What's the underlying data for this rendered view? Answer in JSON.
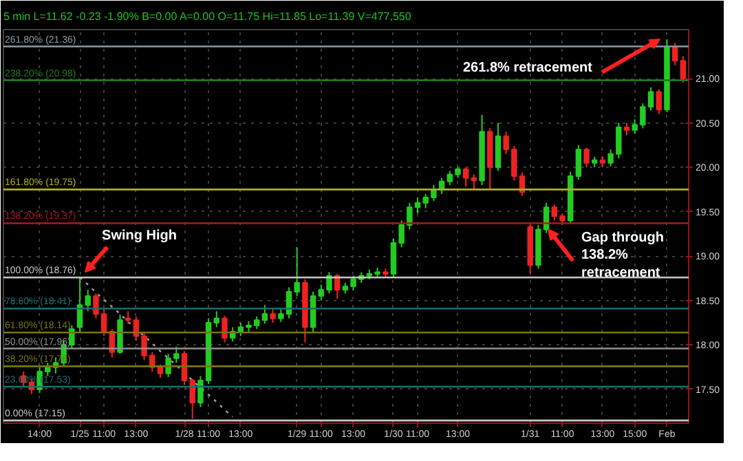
{
  "chart_data": {
    "type": "candlestick",
    "subtitle": "5 min L=11.62 -0.23 -1.90% B=0.00 A=0.00 O=11.75 Hi=11.85 Lo=11.39 V=477,550",
    "ylim": [
      17.12,
      21.55
    ],
    "yticks": [
      {
        "value": 17.5,
        "label": "17.50"
      },
      {
        "value": 18.0,
        "label": "18.00"
      },
      {
        "value": 18.5,
        "label": "18.50"
      },
      {
        "value": 19.0,
        "label": "19.00"
      },
      {
        "value": 19.5,
        "label": "19.50"
      },
      {
        "value": 20.0,
        "label": "20.00"
      },
      {
        "value": 20.5,
        "label": "20.50"
      },
      {
        "value": 21.0,
        "label": "21.00"
      }
    ],
    "grid": true,
    "categories": [
      null,
      null,
      "14:00",
      null,
      null,
      null,
      null,
      "1/25",
      null,
      null,
      "11:00",
      null,
      null,
      null,
      "13:00",
      null,
      null,
      null,
      null,
      null,
      "1/28",
      null,
      null,
      "11:00",
      null,
      null,
      null,
      "13:00",
      null,
      null,
      null,
      null,
      null,
      null,
      "1/29",
      null,
      null,
      "11:00",
      null,
      null,
      null,
      "13:00",
      null,
      null,
      null,
      null,
      "1/30",
      null,
      null,
      "11:00",
      null,
      null,
      null,
      null,
      "13:00",
      null,
      null,
      null,
      null,
      null,
      null,
      null,
      null,
      "1/31",
      null,
      null,
      null,
      "11:00",
      null,
      null,
      null,
      null,
      "13:00",
      null,
      null,
      null,
      "15:00",
      null,
      null,
      null,
      "Feb",
      null,
      null
    ],
    "ohlc": [
      [
        17.65,
        17.7,
        17.53,
        17.58
      ],
      [
        17.58,
        17.62,
        17.45,
        17.5
      ],
      [
        17.5,
        17.75,
        17.46,
        17.7
      ],
      [
        17.7,
        17.8,
        17.65,
        17.75
      ],
      [
        17.75,
        17.86,
        17.68,
        17.8
      ],
      [
        17.8,
        18.05,
        17.76,
        18.0
      ],
      [
        18.0,
        18.22,
        17.96,
        18.18
      ],
      [
        18.2,
        18.76,
        18.15,
        18.45
      ],
      [
        18.45,
        18.62,
        18.38,
        18.55
      ],
      [
        18.55,
        18.58,
        18.3,
        18.35
      ],
      [
        18.35,
        18.4,
        18.1,
        18.15
      ],
      [
        18.15,
        18.18,
        17.86,
        17.92
      ],
      [
        17.92,
        18.34,
        17.9,
        18.28
      ],
      [
        18.3,
        18.38,
        18.24,
        18.28
      ],
      [
        18.28,
        18.32,
        18.05,
        18.1
      ],
      [
        18.1,
        18.14,
        17.83,
        17.88
      ],
      [
        17.88,
        17.92,
        17.7,
        17.75
      ],
      [
        17.75,
        17.78,
        17.63,
        17.68
      ],
      [
        17.68,
        17.9,
        17.64,
        17.85
      ],
      [
        17.85,
        17.98,
        17.8,
        17.9
      ],
      [
        17.9,
        17.93,
        17.55,
        17.6
      ],
      [
        17.6,
        17.62,
        17.17,
        17.35
      ],
      [
        17.35,
        17.65,
        17.3,
        17.6
      ],
      [
        17.6,
        18.3,
        17.56,
        18.25
      ],
      [
        18.25,
        18.38,
        18.2,
        18.3
      ],
      [
        18.3,
        18.33,
        18.03,
        18.08
      ],
      [
        18.08,
        18.2,
        18.04,
        18.15
      ],
      [
        18.15,
        18.25,
        18.1,
        18.2
      ],
      [
        18.2,
        18.27,
        18.15,
        18.22
      ],
      [
        18.22,
        18.32,
        18.18,
        18.28
      ],
      [
        18.28,
        18.45,
        18.24,
        18.35
      ],
      [
        18.35,
        18.4,
        18.25,
        18.3
      ],
      [
        18.3,
        18.4,
        18.26,
        18.35
      ],
      [
        18.35,
        18.65,
        18.3,
        18.6
      ],
      [
        18.6,
        19.1,
        18.55,
        18.7
      ],
      [
        18.7,
        18.74,
        18.03,
        18.2
      ],
      [
        18.2,
        18.6,
        18.15,
        18.55
      ],
      [
        18.55,
        18.68,
        18.5,
        18.62
      ],
      [
        18.62,
        18.82,
        18.58,
        18.78
      ],
      [
        18.78,
        18.8,
        18.52,
        18.62
      ],
      [
        18.62,
        18.7,
        18.58,
        18.66
      ],
      [
        18.66,
        18.78,
        18.62,
        18.74
      ],
      [
        18.74,
        18.82,
        18.7,
        18.78
      ],
      [
        18.78,
        18.85,
        18.74,
        18.8
      ],
      [
        18.8,
        18.87,
        18.76,
        18.82
      ],
      [
        18.82,
        18.86,
        18.76,
        18.8
      ],
      [
        18.8,
        19.2,
        18.76,
        19.15
      ],
      [
        19.15,
        19.4,
        19.1,
        19.35
      ],
      [
        19.35,
        19.6,
        19.3,
        19.55
      ],
      [
        19.55,
        19.66,
        19.48,
        19.6
      ],
      [
        19.6,
        19.7,
        19.54,
        19.66
      ],
      [
        19.66,
        19.8,
        19.62,
        19.75
      ],
      [
        19.75,
        19.88,
        19.7,
        19.84
      ],
      [
        19.84,
        19.96,
        19.8,
        19.92
      ],
      [
        19.92,
        20.0,
        19.88,
        19.98
      ],
      [
        19.98,
        20.0,
        19.78,
        19.88
      ],
      [
        19.88,
        19.92,
        19.75,
        19.85
      ],
      [
        19.85,
        20.59,
        19.8,
        20.4
      ],
      [
        20.4,
        20.44,
        19.75,
        20.0
      ],
      [
        20.0,
        20.5,
        19.96,
        20.35
      ],
      [
        20.35,
        20.4,
        20.15,
        20.2
      ],
      [
        20.2,
        20.24,
        19.85,
        19.9
      ],
      [
        19.9,
        19.94,
        19.68,
        19.72
      ],
      [
        19.33,
        19.36,
        18.8,
        18.9
      ],
      [
        18.9,
        19.35,
        18.86,
        19.3
      ],
      [
        19.3,
        19.6,
        19.26,
        19.55
      ],
      [
        19.55,
        19.58,
        19.4,
        19.45
      ],
      [
        19.45,
        19.48,
        19.35,
        19.4
      ],
      [
        19.4,
        19.95,
        19.36,
        19.9
      ],
      [
        19.9,
        20.25,
        19.86,
        20.2
      ],
      [
        20.2,
        20.22,
        20.0,
        20.05
      ],
      [
        20.05,
        20.12,
        20.0,
        20.08
      ],
      [
        20.08,
        20.12,
        20.0,
        20.05
      ],
      [
        20.05,
        20.2,
        20.01,
        20.15
      ],
      [
        20.15,
        20.5,
        20.1,
        20.45
      ],
      [
        20.45,
        20.5,
        20.36,
        20.42
      ],
      [
        20.42,
        20.54,
        20.38,
        20.48
      ],
      [
        20.48,
        20.72,
        20.44,
        20.68
      ],
      [
        20.68,
        20.9,
        20.64,
        20.85
      ],
      [
        20.85,
        20.88,
        20.6,
        20.65
      ],
      [
        20.65,
        21.44,
        20.62,
        21.35
      ],
      [
        21.35,
        21.4,
        21.15,
        21.2
      ],
      [
        21.2,
        21.25,
        20.95,
        21.0
      ]
    ],
    "colors": [
      "#ee2222",
      "#ee2222",
      "#22cc22",
      "#22cc22",
      "#22cc22",
      "#22cc22",
      "#22cc22",
      "#22cc22",
      "#22cc22",
      "#ee2222",
      "#ee2222",
      "#ee2222",
      "#22cc22",
      "#ee2222",
      "#ee2222",
      "#ee2222",
      "#ee2222",
      "#ee2222",
      "#22cc22",
      "#22cc22",
      "#ee2222",
      "#ee2222",
      "#22cc22",
      "#22cc22",
      "#22cc22",
      "#ee2222",
      "#22cc22",
      "#22cc22",
      "#22cc22",
      "#22cc22",
      "#22cc22",
      "#ee2222",
      "#22cc22",
      "#22cc22",
      "#22cc22",
      "#ee2222",
      "#22cc22",
      "#22cc22",
      "#22cc22",
      "#ee2222",
      "#22cc22",
      "#22cc22",
      "#22cc22",
      "#22cc22",
      "#22cc22",
      "#ee2222",
      "#22cc22",
      "#22cc22",
      "#22cc22",
      "#22cc22",
      "#22cc22",
      "#22cc22",
      "#22cc22",
      "#22cc22",
      "#22cc22",
      "#ee2222",
      "#ee2222",
      "#22cc22",
      "#ee2222",
      "#22cc22",
      "#ee2222",
      "#ee2222",
      "#ee2222",
      "#ee2222",
      "#22cc22",
      "#22cc22",
      "#ee2222",
      "#ee2222",
      "#22cc22",
      "#22cc22",
      "#ee2222",
      "#22cc22",
      "#ee2222",
      "#22cc22",
      "#22cc22",
      "#ee2222",
      "#22cc22",
      "#22cc22",
      "#22cc22",
      "#ee2222",
      "#22cc22",
      "#ee2222",
      "#ee2222"
    ],
    "series": [
      {
        "type": "line",
        "color": "#a0a0a0",
        "line_style": "dotted",
        "values": [
          null,
          null,
          null,
          null,
          null,
          null,
          null,
          18.76,
          18.68,
          18.59,
          18.51,
          18.43,
          18.35,
          18.26,
          18.18,
          18.1,
          18.02,
          17.93,
          17.85,
          17.77,
          17.69,
          17.6,
          17.52,
          17.44,
          17.36,
          17.27,
          17.19,
          null,
          null,
          null,
          null,
          null,
          null,
          null,
          null,
          null,
          null,
          null,
          null,
          null,
          null,
          null,
          null,
          null,
          null,
          null,
          null,
          null,
          null,
          null,
          null,
          null,
          null,
          null,
          null,
          null,
          null,
          null,
          null,
          null,
          null,
          null,
          null,
          null,
          null,
          null,
          null,
          null,
          null,
          null,
          null,
          null,
          null,
          null,
          null,
          null,
          null,
          null,
          null,
          null,
          null,
          null,
          null
        ]
      }
    ],
    "ref_lines": [
      {
        "axis": "y",
        "value": 21.36,
        "label": "261.80% (21.36)",
        "color": "#8c9aa8"
      },
      {
        "axis": "y",
        "value": 20.98,
        "label": "238.20% (20.98)",
        "color": "#1e7a1e"
      },
      {
        "axis": "y",
        "value": 19.75,
        "label": "161.80% (19.75)",
        "color": "#b0b020"
      },
      {
        "axis": "y",
        "value": 19.37,
        "label": "138.20% (19.37)",
        "color": "#b01818"
      },
      {
        "axis": "y",
        "value": 18.76,
        "label": "100.00% (18.76)",
        "color": "#c8c8c8"
      },
      {
        "axis": "y",
        "value": 18.41,
        "label": "78.60% (18.41)",
        "color": "#1a7070"
      },
      {
        "axis": "y",
        "value": 18.14,
        "label": "61.80% (18.14)",
        "color": "#7a7410"
      },
      {
        "axis": "y",
        "value": 17.96,
        "label": "50.00% (17.96)",
        "color": "#909090"
      },
      {
        "axis": "y",
        "value": 17.76,
        "label": "38.20% (17.76)",
        "color": "#7a7410"
      },
      {
        "axis": "y",
        "value": 17.53,
        "label": "23.60% (17.53)",
        "color": "#1a7070"
      },
      {
        "axis": "y",
        "value": 17.15,
        "label": "0.00% (17.15)",
        "color": "#c8c8c8"
      }
    ],
    "annotations": [
      {
        "text": "Swing High",
        "x": "1/25",
        "y": 18.76
      },
      {
        "text": "261.8% retracement",
        "y": 21.44
      },
      {
        "text": "Gap through 138.2% retracement",
        "y": 19.3
      }
    ]
  }
}
